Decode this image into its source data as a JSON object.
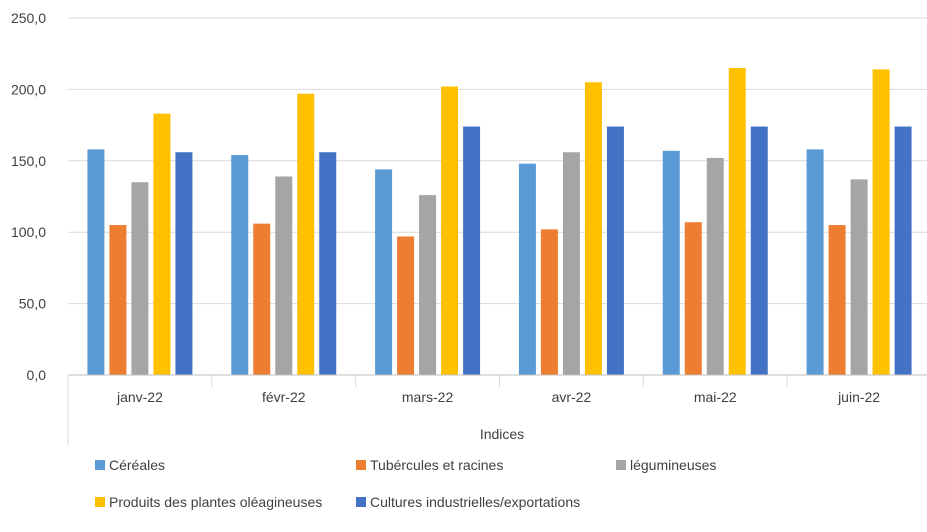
{
  "chart_data": {
    "type": "bar",
    "title": "",
    "xlabel": "Indices",
    "ylabel": "",
    "ylim": [
      0,
      250
    ],
    "y_ticks": [
      "0,0",
      "50,0",
      "100,0",
      "150,0",
      "200,0",
      "250,0"
    ],
    "y_tick_values": [
      0,
      50,
      100,
      150,
      200,
      250
    ],
    "grid": true,
    "legend_position": "bottom",
    "categories": [
      "janv-22",
      "févr-22",
      "mars-22",
      "avr-22",
      "mai-22",
      "juin-22"
    ],
    "series": [
      {
        "name": "Céréales",
        "color": "#5B9BD5",
        "values": [
          158,
          154,
          144,
          148,
          157,
          158
        ]
      },
      {
        "name": "Tubércules et racines",
        "color": "#ED7D31",
        "values": [
          105,
          106,
          97,
          102,
          107,
          105
        ]
      },
      {
        "name": "légumineuses",
        "color": "#A5A5A5",
        "values": [
          135,
          139,
          126,
          156,
          152,
          137
        ]
      },
      {
        "name": "Produits des plantes oléagineuses",
        "color": "#FFC000",
        "values": [
          183,
          197,
          202,
          205,
          215,
          214
        ]
      },
      {
        "name": "Cultures industrielles/exportations",
        "color": "#4472C4",
        "values": [
          156,
          156,
          174,
          174,
          174,
          174
        ]
      }
    ]
  }
}
